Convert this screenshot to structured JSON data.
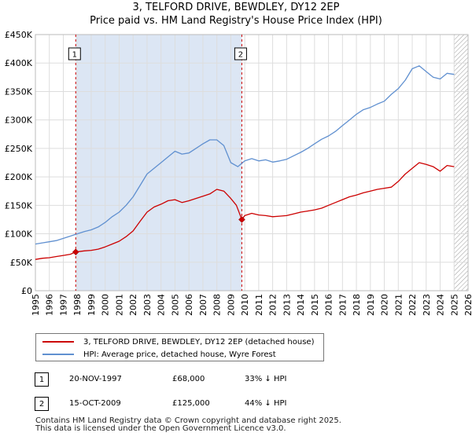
{
  "header": {
    "title": "3, TELFORD DRIVE, BEWDLEY, DY12 2EP",
    "subtitle": "Price paid vs. HM Land Registry's House Price Index (HPI)"
  },
  "colors": {
    "property_line": "#cc0000",
    "hpi_line": "#6090d0",
    "shade": "#dce6f4",
    "grid": "#dddddd",
    "marker_line": "#cc0000"
  },
  "legend": {
    "property_label": "3, TELFORD DRIVE, BEWDLEY, DY12 2EP (detached house)",
    "hpi_label": "HPI: Average price, detached house, Wyre Forest"
  },
  "transactions": [
    {
      "badge": "1",
      "date": "20-NOV-1997",
      "price": "£68,000",
      "hpi_diff": "33% ↓ HPI"
    },
    {
      "badge": "2",
      "date": "15-OCT-2009",
      "price": "£125,000",
      "hpi_diff": "44% ↓ HPI"
    }
  ],
  "footer": {
    "line1": "Contains HM Land Registry data © Crown copyright and database right 2025.",
    "line2": "This data is licensed under the Open Government Licence v3.0."
  },
  "chart_data": {
    "type": "line",
    "title": "3, TELFORD DRIVE, BEWDLEY, DY12 2EP",
    "subtitle": "Price paid vs. HM Land Registry's House Price Index (HPI)",
    "xlabel": "",
    "ylabel": "",
    "xlim": [
      1995,
      2026
    ],
    "ylim": [
      0,
      450000
    ],
    "grid": true,
    "legend_position": "bottom",
    "y_ticks": [
      {
        "value": 0,
        "label": "£0"
      },
      {
        "value": 50000,
        "label": "£50K"
      },
      {
        "value": 100000,
        "label": "£100K"
      },
      {
        "value": 150000,
        "label": "£150K"
      },
      {
        "value": 200000,
        "label": "£200K"
      },
      {
        "value": 250000,
        "label": "£250K"
      },
      {
        "value": 300000,
        "label": "£300K"
      },
      {
        "value": 350000,
        "label": "£350K"
      },
      {
        "value": 400000,
        "label": "£400K"
      },
      {
        "value": 450000,
        "label": "£450K"
      }
    ],
    "x_ticks": [
      "1995",
      "1996",
      "1997",
      "1998",
      "1999",
      "2000",
      "2001",
      "2002",
      "2003",
      "2004",
      "2005",
      "2006",
      "2007",
      "2008",
      "2009",
      "2010",
      "2011",
      "2012",
      "2013",
      "2014",
      "2015",
      "2016",
      "2017",
      "2018",
      "2019",
      "2020",
      "2021",
      "2022",
      "2023",
      "2024",
      "2025",
      "2026"
    ],
    "shaded_periods": [
      {
        "from": 1997.89,
        "to": 2009.79
      },
      {
        "from": 2025.0,
        "to": 2026.0,
        "hatched": true
      }
    ],
    "sale_markers": [
      {
        "label": "1",
        "x": 1997.89,
        "y": 68000
      },
      {
        "label": "2",
        "x": 2009.79,
        "y": 125000
      }
    ],
    "series": [
      {
        "name": "3, TELFORD DRIVE, BEWDLEY, DY12 2EP (detached house)",
        "color": "#cc0000",
        "x": [
          1995,
          1995.5,
          1996,
          1996.5,
          1997,
          1997.5,
          1997.89,
          1998.5,
          1999,
          1999.5,
          2000,
          2000.5,
          2001,
          2001.5,
          2002,
          2002.5,
          2003,
          2003.5,
          2004,
          2004.5,
          2005,
          2005.5,
          2006,
          2006.5,
          2007,
          2007.5,
          2008,
          2008.5,
          2009,
          2009.4,
          2009.79,
          2010,
          2010.5,
          2011,
          2011.5,
          2012,
          2012.5,
          2013,
          2013.5,
          2014,
          2014.5,
          2015,
          2015.5,
          2016,
          2016.5,
          2017,
          2017.5,
          2018,
          2018.5,
          2019,
          2019.5,
          2020,
          2020.5,
          2021,
          2021.5,
          2022,
          2022.5,
          2023,
          2023.5,
          2024,
          2024.5,
          2025.0
        ],
        "y": [
          55000,
          57000,
          58000,
          60000,
          62000,
          64000,
          68000,
          70000,
          71000,
          73000,
          77000,
          82000,
          87000,
          95000,
          105000,
          122000,
          138000,
          147000,
          152000,
          158000,
          160000,
          155000,
          158000,
          162000,
          166000,
          170000,
          178000,
          175000,
          162000,
          150000,
          125000,
          132000,
          136000,
          133000,
          132000,
          130000,
          131000,
          132000,
          135000,
          138000,
          140000,
          142000,
          145000,
          150000,
          155000,
          160000,
          165000,
          168000,
          172000,
          175000,
          178000,
          180000,
          182000,
          192000,
          205000,
          215000,
          225000,
          222000,
          218000,
          210000,
          220000,
          218000
        ]
      },
      {
        "name": "HPI: Average price, detached house, Wyre Forest",
        "color": "#6090d0",
        "x": [
          1995,
          1995.5,
          1996,
          1996.5,
          1997,
          1997.5,
          1998,
          1998.5,
          1999,
          1999.5,
          2000,
          2000.5,
          2001,
          2001.5,
          2002,
          2002.5,
          2003,
          2003.5,
          2004,
          2004.5,
          2005,
          2005.5,
          2006,
          2006.5,
          2007,
          2007.5,
          2008,
          2008.5,
          2009,
          2009.5,
          2010,
          2010.5,
          2011,
          2011.5,
          2012,
          2012.5,
          2013,
          2013.5,
          2014,
          2014.5,
          2015,
          2015.5,
          2016,
          2016.5,
          2017,
          2017.5,
          2018,
          2018.5,
          2019,
          2019.5,
          2020,
          2020.5,
          2021,
          2021.5,
          2022,
          2022.5,
          2023,
          2023.5,
          2024,
          2024.5,
          2025.0
        ],
        "y": [
          82000,
          84000,
          86000,
          88000,
          92000,
          96000,
          100000,
          104000,
          107000,
          112000,
          120000,
          130000,
          138000,
          150000,
          165000,
          185000,
          205000,
          215000,
          225000,
          235000,
          245000,
          240000,
          242000,
          250000,
          258000,
          265000,
          265000,
          255000,
          225000,
          218000,
          228000,
          232000,
          228000,
          230000,
          226000,
          228000,
          231000,
          237000,
          243000,
          250000,
          258000,
          266000,
          272000,
          280000,
          290000,
          300000,
          310000,
          318000,
          322000,
          328000,
          333000,
          345000,
          355000,
          370000,
          390000,
          395000,
          385000,
          375000,
          372000,
          382000,
          380000
        ]
      }
    ]
  }
}
